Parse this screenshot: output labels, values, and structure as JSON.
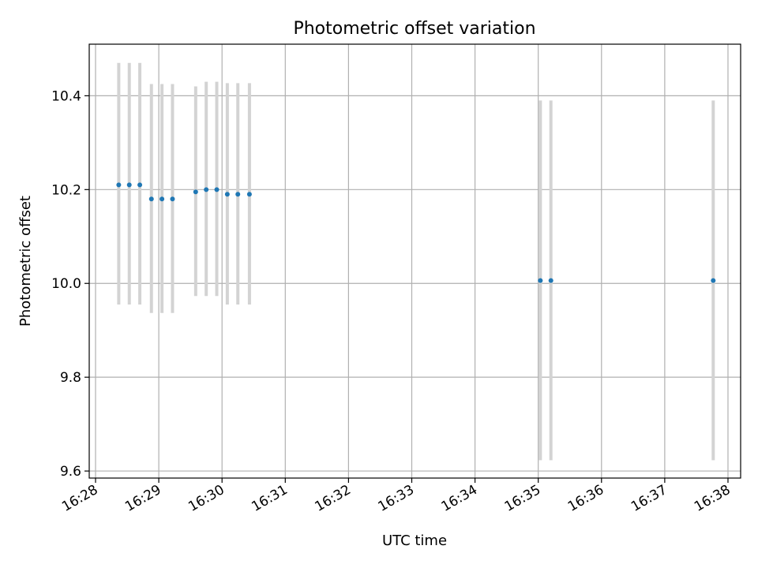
{
  "chart_data": {
    "type": "scatter",
    "title": "Photometric offset variation",
    "xlabel": "UTC time",
    "ylabel": "Photometric offset",
    "xlim": [
      "16:27:54",
      "16:38:12"
    ],
    "ylim": [
      9.585,
      10.51
    ],
    "grid": true,
    "x_ticks": [
      "16:28",
      "16:29",
      "16:30",
      "16:31",
      "16:32",
      "16:33",
      "16:34",
      "16:35",
      "16:36",
      "16:37",
      "16:38"
    ],
    "y_ticks": [
      9.6,
      9.8,
      10.0,
      10.2,
      10.4
    ],
    "y_tick_labels": [
      "9.6",
      "9.8",
      "10.0",
      "10.2",
      "10.4"
    ],
    "series": [
      {
        "color": "#1f77b4",
        "errorbar_color": "#d3d3d3",
        "points": [
          {
            "x": "16:28:22",
            "y": 10.21,
            "lo": 9.955,
            "hi": 10.47
          },
          {
            "x": "16:28:32",
            "y": 10.21,
            "lo": 9.955,
            "hi": 10.47
          },
          {
            "x": "16:28:42",
            "y": 10.21,
            "lo": 9.955,
            "hi": 10.47
          },
          {
            "x": "16:28:53",
            "y": 10.18,
            "lo": 9.937,
            "hi": 10.425
          },
          {
            "x": "16:29:03",
            "y": 10.18,
            "lo": 9.937,
            "hi": 10.425
          },
          {
            "x": "16:29:13",
            "y": 10.18,
            "lo": 9.937,
            "hi": 10.425
          },
          {
            "x": "16:29:35",
            "y": 10.195,
            "lo": 9.973,
            "hi": 10.42
          },
          {
            "x": "16:29:45",
            "y": 10.2,
            "lo": 9.973,
            "hi": 10.43
          },
          {
            "x": "16:29:55",
            "y": 10.2,
            "lo": 9.973,
            "hi": 10.43
          },
          {
            "x": "16:30:05",
            "y": 10.19,
            "lo": 9.955,
            "hi": 10.427
          },
          {
            "x": "16:30:15",
            "y": 10.19,
            "lo": 9.955,
            "hi": 10.427
          },
          {
            "x": "16:30:26",
            "y": 10.19,
            "lo": 9.955,
            "hi": 10.427
          },
          {
            "x": "16:35:02",
            "y": 10.006,
            "lo": 9.623,
            "hi": 10.39
          },
          {
            "x": "16:35:12",
            "y": 10.006,
            "lo": 9.623,
            "hi": 10.39
          },
          {
            "x": "16:37:46",
            "y": 10.006,
            "lo": 9.623,
            "hi": 10.39
          }
        ]
      }
    ]
  }
}
